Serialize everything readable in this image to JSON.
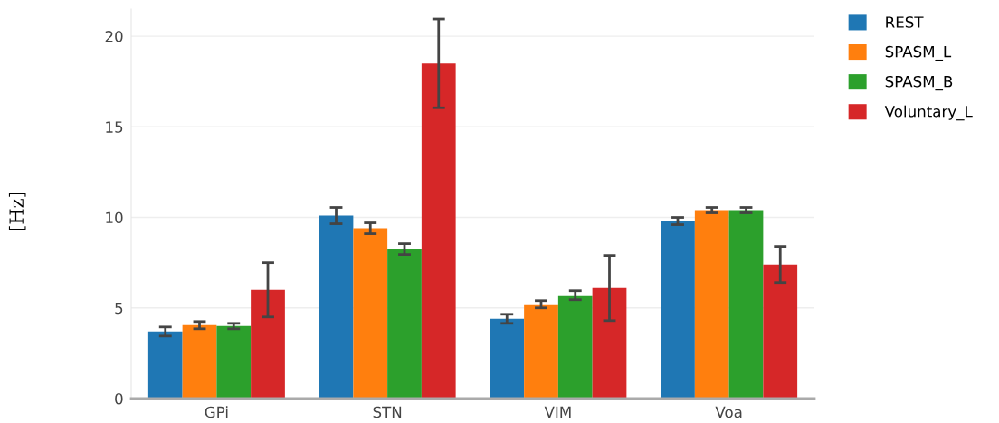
{
  "chart_data": {
    "type": "bar",
    "ylabel": "[Hz]",
    "categories": [
      "GPi",
      "STN",
      "VIM",
      "Voa"
    ],
    "series": [
      {
        "name": "REST",
        "color": "#1f77b4",
        "values": [
          3.7,
          10.1,
          4.4,
          9.8
        ],
        "errors": [
          0.25,
          0.45,
          0.25,
          0.2
        ]
      },
      {
        "name": "SPASM_L",
        "color": "#ff7f0e",
        "values": [
          4.05,
          9.4,
          5.2,
          10.4
        ],
        "errors": [
          0.2,
          0.3,
          0.2,
          0.15
        ]
      },
      {
        "name": "SPASM_B",
        "color": "#2ca02c",
        "values": [
          4.0,
          8.25,
          5.7,
          10.4
        ],
        "errors": [
          0.15,
          0.3,
          0.25,
          0.15
        ]
      },
      {
        "name": "Voluntary_L",
        "color": "#d62728",
        "values": [
          6.0,
          18.5,
          6.1,
          7.4
        ],
        "errors": [
          1.5,
          2.45,
          1.8,
          1.0
        ]
      }
    ],
    "ylim": [
      0,
      21.5
    ],
    "yticks": [
      0,
      5,
      10,
      15,
      20
    ],
    "grid": "y",
    "legend": "top right"
  }
}
